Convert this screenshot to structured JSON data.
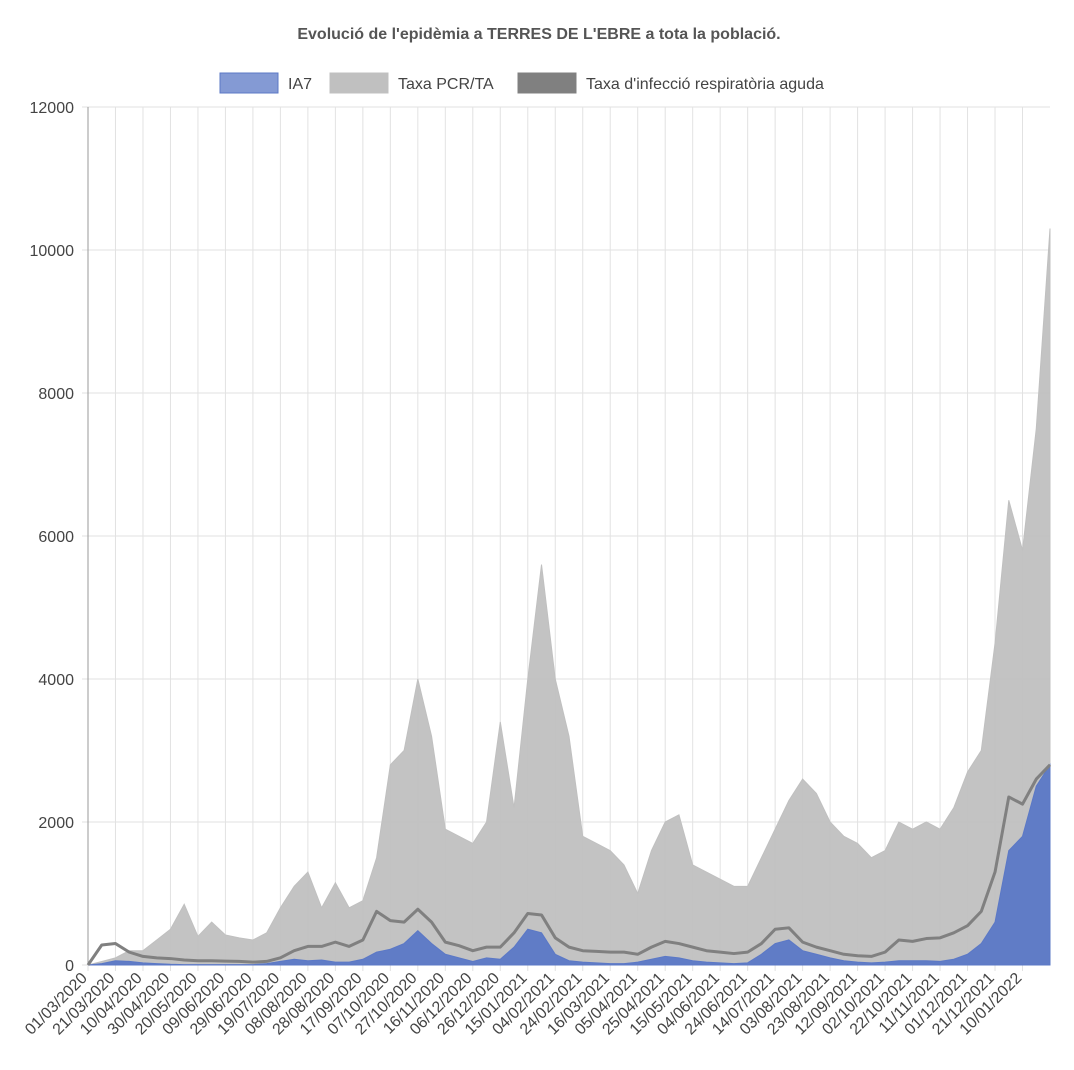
{
  "chart_data": {
    "type": "area",
    "title": "Evolució de l'epidèmia a TERRES DE L'EBRE a tota la població.",
    "categories": [
      "01/03/2020",
      null,
      "21/03/2020",
      null,
      "10/04/2020",
      null,
      "30/04/2020",
      null,
      "20/05/2020",
      null,
      "09/06/2020",
      null,
      "29/06/2020",
      null,
      "19/07/2020",
      null,
      "08/08/2020",
      null,
      "28/08/2020",
      null,
      "17/09/2020",
      null,
      "07/10/2020",
      null,
      "27/10/2020",
      null,
      "16/11/2020",
      null,
      "06/12/2020",
      null,
      "26/12/2020",
      null,
      "15/01/2021",
      null,
      "04/02/2021",
      null,
      "24/02/2021",
      null,
      "16/03/2021",
      null,
      "05/04/2021",
      null,
      "25/04/2021",
      null,
      "15/05/2021",
      null,
      "04/06/2021",
      null,
      "24/06/2021",
      null,
      "14/07/2021",
      null,
      "03/08/2021",
      null,
      "23/08/2021",
      null,
      "12/09/2021",
      null,
      "02/10/2021",
      null,
      "22/10/2021",
      null,
      "11/11/2021",
      null,
      "01/12/2021",
      null,
      "21/12/2021",
      null,
      "10/01/2022",
      null,
      null
    ],
    "series": [
      {
        "name": "IA7",
        "type": "area",
        "color": "#5b78c6",
        "values": [
          0,
          20,
          60,
          50,
          30,
          20,
          10,
          5,
          5,
          5,
          5,
          5,
          5,
          20,
          50,
          80,
          60,
          70,
          40,
          40,
          80,
          180,
          220,
          300,
          480,
          300,
          150,
          100,
          50,
          100,
          80,
          250,
          500,
          450,
          150,
          60,
          40,
          30,
          20,
          20,
          40,
          80,
          120,
          100,
          60,
          40,
          30,
          20,
          30,
          150,
          300,
          350,
          200,
          150,
          100,
          60,
          40,
          30,
          40,
          60,
          60,
          60,
          50,
          80,
          150,
          300,
          600,
          1600,
          1800,
          2500,
          2800
        ]
      },
      {
        "name": "Taxa PCR/TA",
        "type": "area",
        "color": "#c0c0c0",
        "values": [
          0,
          50,
          100,
          200,
          200,
          350,
          500,
          850,
          400,
          600,
          420,
          380,
          350,
          450,
          800,
          1100,
          1300,
          800,
          1150,
          800,
          900,
          1500,
          2800,
          3000,
          4000,
          3200,
          1900,
          1800,
          1700,
          2000,
          3400,
          2200,
          4000,
          5600,
          4000,
          3200,
          1800,
          1700,
          1600,
          1400,
          1000,
          1600,
          2000,
          2100,
          1400,
          1300,
          1200,
          1100,
          1100,
          1500,
          1900,
          2300,
          2600,
          2400,
          2000,
          1800,
          1700,
          1500,
          1600,
          2000,
          1900,
          2000,
          1900,
          2200,
          2700,
          3000,
          4500,
          6500,
          5800,
          7500,
          10300
        ]
      },
      {
        "name": "Taxa d'infecció respiratòria aguda",
        "type": "line",
        "color": "#808080",
        "values": [
          0,
          280,
          300,
          180,
          120,
          100,
          90,
          70,
          60,
          60,
          55,
          50,
          40,
          50,
          100,
          200,
          260,
          260,
          320,
          260,
          350,
          750,
          620,
          600,
          780,
          600,
          320,
          270,
          200,
          250,
          250,
          450,
          720,
          700,
          380,
          250,
          200,
          190,
          180,
          180,
          150,
          250,
          330,
          300,
          250,
          200,
          180,
          160,
          180,
          300,
          500,
          520,
          320,
          250,
          200,
          150,
          130,
          120,
          180,
          350,
          330,
          370,
          380,
          450,
          550,
          750,
          1300,
          2350,
          2250,
          2600,
          2800
        ]
      }
    ],
    "ylim": [
      0,
      12000
    ],
    "yticks": [
      0,
      2000,
      4000,
      6000,
      8000,
      10000,
      12000
    ],
    "grid": true
  }
}
